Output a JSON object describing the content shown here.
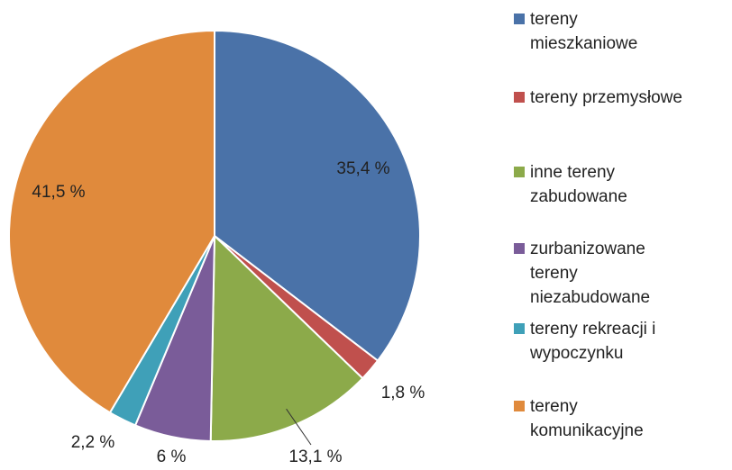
{
  "chart_data": {
    "type": "pie",
    "categories": [
      "tereny mieszkaniowe",
      "tereny przemysłowe",
      "inne tereny zabudowane",
      "zurbanizowane tereny niezabudowane",
      "tereny rekreacji i wypoczynku",
      "tereny komunikacyjne"
    ],
    "values": [
      35.4,
      1.8,
      13.1,
      6,
      2.2,
      41.5
    ],
    "value_labels": [
      "35,4 %",
      "1,8 %",
      "13,1 %",
      "6 %",
      "2,2 %",
      "41,5 %"
    ],
    "colors": [
      "#4a72a8",
      "#c0504d",
      "#8caa4a",
      "#7a5c99",
      "#3fa0b8",
      "#e08a3c"
    ],
    "legend": "right"
  }
}
